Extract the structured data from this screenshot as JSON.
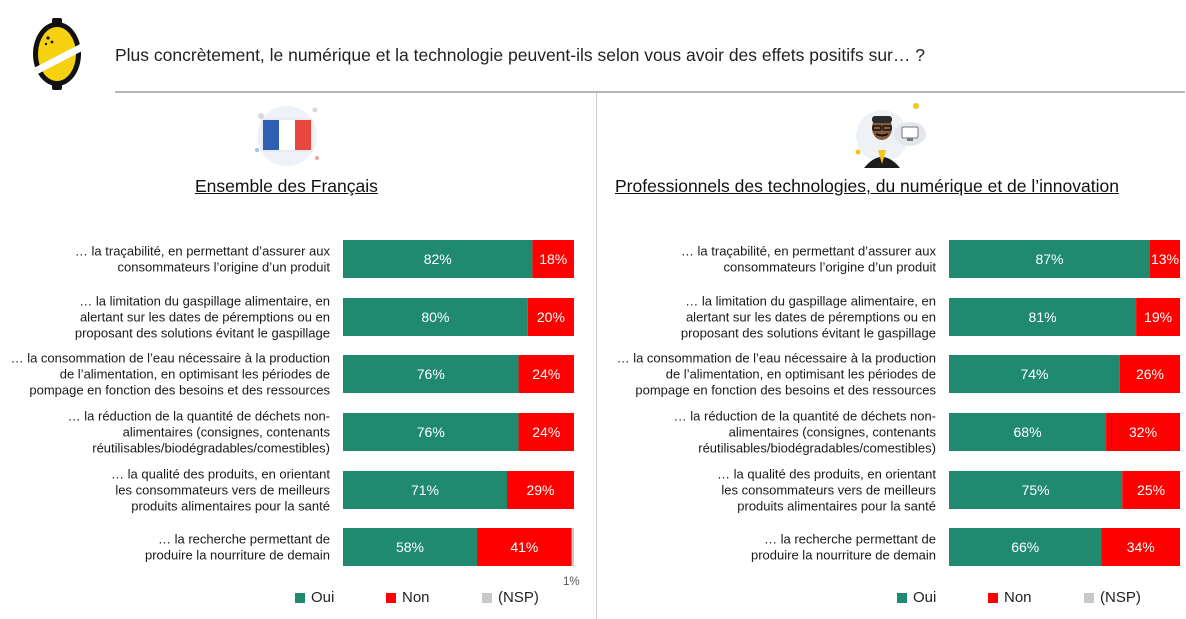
{
  "header": {
    "question": "Plus concrètement, le numérique et la technologie peuvent-ils selon vous avoir des effets positifs sur… ?"
  },
  "colors": {
    "oui": "#1f8a70",
    "non": "#ff0000",
    "nsp": "#c8c8c8",
    "logo_yellow": "#f5d10f"
  },
  "icons": {
    "logo": "lemon-logo-icon",
    "left_illustration": "french-flag-icon",
    "right_illustration": "tech-professional-icon"
  },
  "legend": {
    "oui": "Oui",
    "non": "Non",
    "nsp": "(NSP)"
  },
  "chart_data": [
    {
      "type": "bar",
      "stacked": true,
      "orientation": "horizontal",
      "title": "Ensemble des Français",
      "categories": [
        [
          "… la traçabilité, en permettant d’assurer aux",
          "consommateurs l’origine d’un produit"
        ],
        [
          "… la limitation du gaspillage alimentaire, en",
          "alertant sur les dates de péremptions ou en",
          "proposant des solutions évitant le gaspillage"
        ],
        [
          "… la consommation de l’eau nécessaire à la production",
          "de l’alimentation, en optimisant les périodes de",
          "pompage en fonction des besoins et des ressources"
        ],
        [
          "… la réduction de la quantité de déchets non-",
          "alimentaires (consignes, contenants",
          "réutilisables/biodégradables/comestibles)"
        ],
        [
          "… la qualité des produits, en orientant",
          "les consommateurs vers de meilleurs",
          "produits alimentaires pour la santé"
        ],
        [
          "… la recherche permettant de",
          "produire la nourriture de demain"
        ]
      ],
      "series": [
        {
          "name": "Oui",
          "values": [
            82,
            80,
            76,
            76,
            71,
            58
          ],
          "labels": [
            "82%",
            "80%",
            "76%",
            "76%",
            "71%",
            "58%"
          ]
        },
        {
          "name": "Non",
          "values": [
            18,
            20,
            24,
            24,
            29,
            41
          ],
          "labels": [
            "18%",
            "20%",
            "24%",
            "24%",
            "29%",
            "41%"
          ]
        },
        {
          "name": "(NSP)",
          "values": [
            0,
            0,
            0,
            0,
            0,
            1
          ],
          "labels": [
            "",
            "",
            "",
            "",
            "",
            "1%"
          ]
        }
      ],
      "xlim": [
        0,
        100
      ],
      "legend_position": "bottom"
    },
    {
      "type": "bar",
      "stacked": true,
      "orientation": "horizontal",
      "title": "Professionnels des technologies, du numérique et de l’innovation",
      "categories": [
        [
          "… la traçabilité, en permettant d’assurer aux",
          "consommateurs l’origine d’un produit"
        ],
        [
          "… la limitation du gaspillage alimentaire, en",
          "alertant sur les dates de péremptions ou en",
          "proposant des solutions évitant le gaspillage"
        ],
        [
          "… la consommation de l’eau nécessaire à la production",
          "de l’alimentation, en optimisant les périodes de",
          "pompage en fonction des besoins et des ressources"
        ],
        [
          "… la réduction de la quantité de déchets non-",
          "alimentaires (consignes, contenants",
          "réutilisables/biodégradables/comestibles)"
        ],
        [
          "… la qualité des produits, en orientant",
          "les consommateurs vers de meilleurs",
          "produits alimentaires pour la santé"
        ],
        [
          "… la recherche permettant de",
          "produire la nourriture de demain"
        ]
      ],
      "series": [
        {
          "name": "Oui",
          "values": [
            87,
            81,
            74,
            68,
            75,
            66
          ],
          "labels": [
            "87%",
            "81%",
            "74%",
            "68%",
            "75%",
            "66%"
          ]
        },
        {
          "name": "Non",
          "values": [
            13,
            19,
            26,
            32,
            25,
            34
          ],
          "labels": [
            "13%",
            "19%",
            "26%",
            "32%",
            "25%",
            "34%"
          ]
        },
        {
          "name": "(NSP)",
          "values": [
            0,
            0,
            0,
            0,
            0,
            0
          ],
          "labels": [
            "",
            "",
            "",
            "",
            "",
            ""
          ]
        }
      ],
      "xlim": [
        0,
        100
      ],
      "legend_position": "bottom"
    }
  ]
}
